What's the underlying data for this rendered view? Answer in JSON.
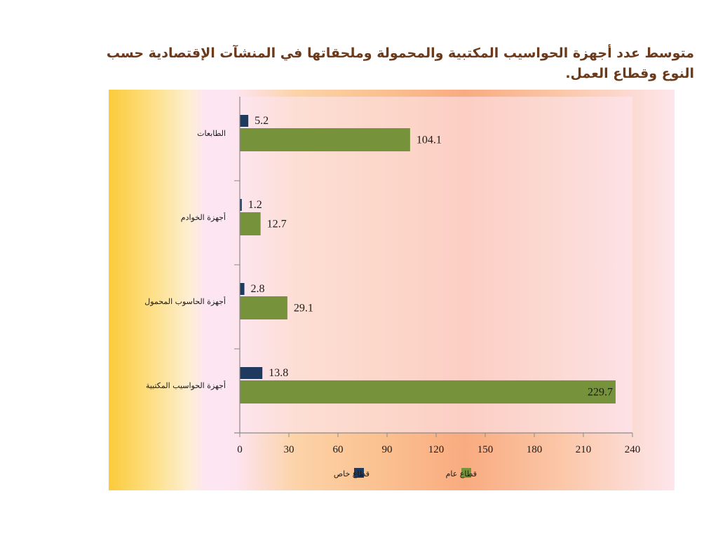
{
  "slide": {
    "title": "متوسط عدد أجهزة الحواسيب المكتبية والمحمولة وملحقاتها في المنشآت الإقتصادية حسب النوع وقطاع العمل."
  },
  "colors": {
    "private": "#1e3a5f",
    "public": "#76933c"
  },
  "chart_data": {
    "type": "bar",
    "orientation": "horizontal",
    "categories": [
      "الطابعات",
      "أجهزة الخوادم",
      "أجهزة الحاسوب المحمول",
      "أجهزة الحواسيب المكتبية"
    ],
    "series": [
      {
        "name": "قطاع خاص",
        "values": [
          5.2,
          1.2,
          2.8,
          13.8
        ]
      },
      {
        "name": "قطاع عام",
        "values": [
          104.1,
          12.7,
          29.1,
          229.7
        ]
      }
    ],
    "xticks": [
      0,
      30,
      60,
      90,
      120,
      150,
      180,
      210,
      240
    ],
    "xlim": [
      0,
      240
    ],
    "legend_position": "bottom",
    "grid": false
  }
}
